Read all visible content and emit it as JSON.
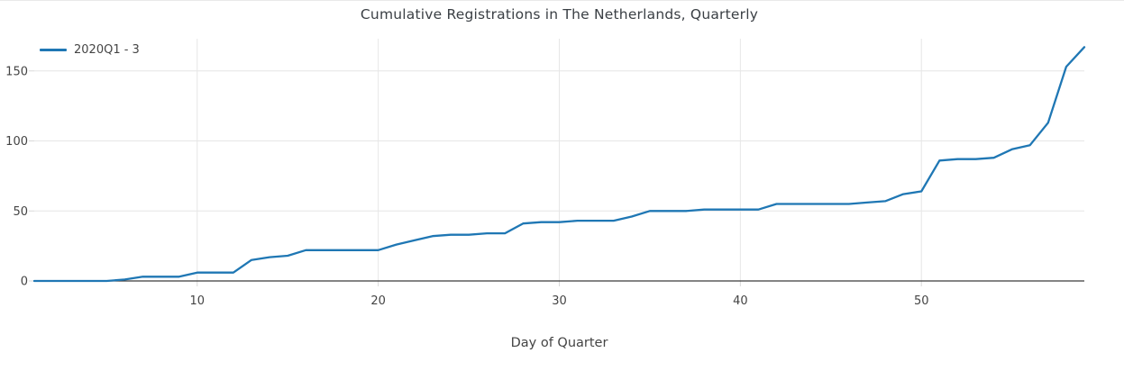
{
  "chart_data": {
    "type": "line",
    "title": "Cumulative Registrations in The Netherlands, Quarterly",
    "xlabel": "Day of Quarter",
    "ylabel": "",
    "xlim": [
      1,
      59
    ],
    "ylim": [
      0,
      173
    ],
    "x_ticks": [
      10,
      20,
      30,
      40,
      50
    ],
    "y_ticks": [
      0,
      50,
      100,
      150
    ],
    "grid": true,
    "legend_position": "top-left",
    "series": [
      {
        "name": "2020Q1 - 3",
        "color": "#1f77b4",
        "x": [
          1,
          2,
          3,
          4,
          5,
          6,
          7,
          8,
          9,
          10,
          11,
          12,
          13,
          14,
          15,
          16,
          17,
          18,
          19,
          20,
          21,
          22,
          23,
          24,
          25,
          26,
          27,
          28,
          29,
          30,
          31,
          32,
          33,
          34,
          35,
          36,
          37,
          38,
          39,
          40,
          41,
          42,
          43,
          44,
          45,
          46,
          47,
          48,
          49,
          50,
          51,
          52,
          53,
          54,
          55,
          56,
          57,
          58,
          59
        ],
        "y": [
          0,
          0,
          0,
          0,
          0,
          1,
          3,
          3,
          3,
          6,
          6,
          6,
          15,
          17,
          18,
          22,
          22,
          22,
          22,
          22,
          26,
          29,
          32,
          33,
          33,
          34,
          34,
          41,
          42,
          42,
          43,
          43,
          43,
          46,
          50,
          50,
          50,
          51,
          51,
          51,
          51,
          55,
          55,
          55,
          55,
          55,
          56,
          57,
          62,
          64,
          86,
          87,
          87,
          88,
          94,
          97,
          113,
          153,
          167
        ]
      }
    ]
  },
  "colors": {
    "accent_line": "#1f77b4",
    "grid": "#e6e6e6",
    "tick": "#d9d9d9",
    "axis": "#3a3a3a",
    "tick_text": "#444444",
    "title_text": "#3a3f44",
    "background": "#ffffff"
  }
}
